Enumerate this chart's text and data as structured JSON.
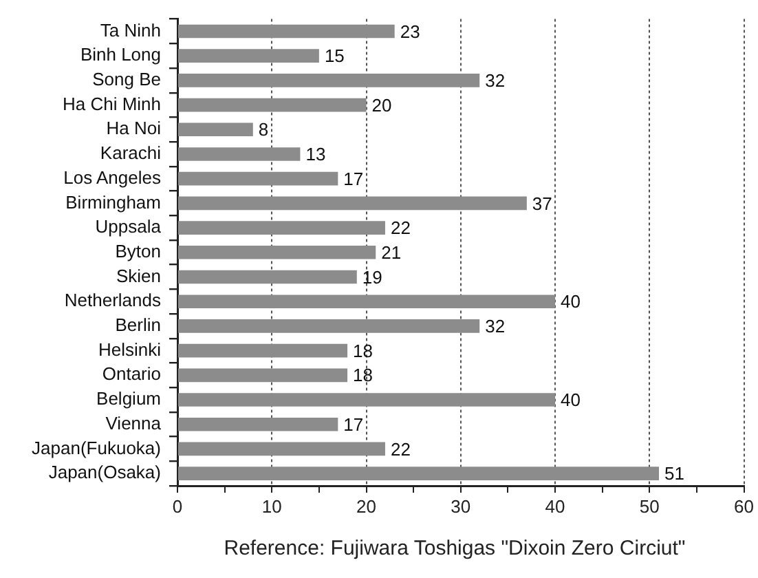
{
  "chart_data": {
    "type": "bar",
    "orientation": "horizontal",
    "categories": [
      "Ta Ninh",
      "Binh Long",
      "Song Be",
      "Ha Chi Minh",
      "Ha Noi",
      "Karachi",
      "Los Angeles",
      "Birmingham",
      "Uppsala",
      "Byton",
      "Skien",
      "Netherlands",
      "Berlin",
      "Helsinki",
      "Ontario",
      "Belgium",
      "Vienna",
      "Japan(Fukuoka)",
      "Japan(Osaka)"
    ],
    "values": [
      23,
      15,
      32,
      20,
      8,
      13,
      17,
      37,
      22,
      21,
      19,
      40,
      32,
      18,
      18,
      40,
      17,
      22,
      51
    ],
    "color": "#8c8c8c",
    "xlim": [
      0,
      60
    ],
    "xticks": [
      0,
      {
        "value": 5,
        "label": null
      },
      10,
      {
        "value": 15,
        "label": null
      },
      20,
      {
        "value": 25,
        "label": null
      },
      30,
      {
        "value": 35,
        "label": null
      },
      40,
      {
        "value": 45,
        "label": null
      },
      50,
      {
        "value": 55,
        "label": null
      },
      60
    ],
    "grid": "x",
    "data_labels": true,
    "annotations": [
      "Reference: Fujiwara Toshigas \"Dixoin Zero Circiut\""
    ]
  }
}
